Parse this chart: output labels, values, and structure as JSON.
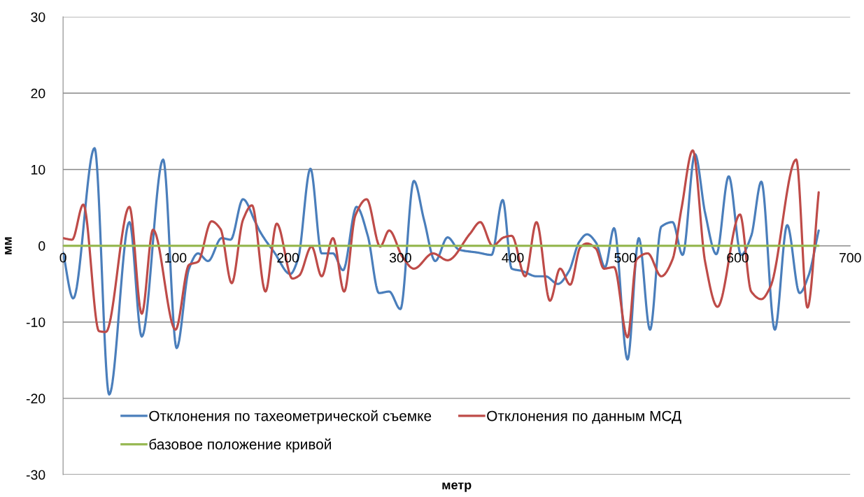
{
  "chart_data": {
    "type": "line",
    "xlabel": "метр",
    "ylabel": "мм",
    "xlim": [
      0,
      700
    ],
    "xticks": [
      0,
      100,
      200,
      300,
      400,
      500,
      600,
      700
    ],
    "ylim": [
      -30,
      30
    ],
    "yticks": [
      -30,
      -20,
      -10,
      0,
      10,
      20,
      30
    ],
    "grid": "y",
    "legend": "bottom",
    "series": [
      {
        "name": "Отклонения по тахеометрической съемке",
        "color": "#4a7ebb",
        "x": [
          0,
          9,
          28,
          41,
          59,
          70,
          89,
          101,
          112,
          120,
          129,
          141,
          149,
          160,
          171,
          175,
          188,
          202,
          209,
          220,
          230,
          240,
          249,
          261,
          271,
          281,
          290,
          300,
          312,
          321,
          331,
          342,
          352,
          369,
          381,
          391,
          399,
          408,
          421,
          429,
          440,
          450,
          459,
          466,
          474,
          482,
          490,
          502,
          512,
          522,
          532,
          542,
          551,
          562,
          571,
          581,
          592,
          603,
          612,
          621,
          633,
          644,
          655,
          663,
          672
        ],
        "values": [
          -0.9,
          -6.9,
          12.8,
          -19.5,
          3.1,
          -11.9,
          11.3,
          -13.4,
          -3.0,
          -1.0,
          -2.0,
          1.0,
          0.8,
          6.1,
          3.1,
          1.9,
          -0.9,
          -3.7,
          -1.7,
          10.1,
          -1.0,
          -1.0,
          -3.2,
          5.1,
          1.3,
          -6.2,
          -6.0,
          -8.3,
          8.5,
          3.4,
          -2.0,
          1.1,
          -0.5,
          -0.9,
          -1.2,
          6.0,
          -3.0,
          -3.3,
          -4.0,
          -4.0,
          -5.0,
          -3.3,
          0.5,
          1.5,
          0.4,
          -2.8,
          2.3,
          -14.9,
          1.0,
          -11.0,
          2.5,
          3.1,
          -1.2,
          12.0,
          4.3,
          -1.1,
          9.1,
          -1.2,
          1.3,
          8.4,
          -11.0,
          2.7,
          -6.2,
          -3.9,
          2.0
        ]
      },
      {
        "name": "Отклонения по данным МСД",
        "color": "#be4b48",
        "x": [
          0,
          8,
          18,
          32,
          38,
          59,
          70,
          80,
          100,
          112,
          120,
          132,
          140,
          150,
          160,
          168,
          180,
          190,
          204,
          210,
          221,
          230,
          240,
          250,
          260,
          270,
          282,
          290,
          302,
          312,
          329,
          342,
          362,
          371,
          382,
          392,
          399,
          411,
          421,
          433,
          442,
          451,
          460,
          466,
          474,
          481,
          490,
          502,
          510,
          520,
          532,
          542,
          550,
          560,
          571,
          582,
          602,
          612,
          621,
          629,
          652,
          662,
          672
        ],
        "values": [
          1.0,
          0.8,
          5.4,
          -11.2,
          -11.3,
          5.1,
          -8.9,
          2.1,
          -11.0,
          -2.5,
          -2.1,
          3.2,
          2.2,
          -4.9,
          3.4,
          5.3,
          -6.0,
          2.9,
          -4.3,
          -3.9,
          -0.1,
          -4.0,
          1.0,
          -6.0,
          4.0,
          6.1,
          -0.1,
          2.0,
          -1.5,
          -3.0,
          -1.0,
          -1.9,
          1.6,
          3.1,
          0.0,
          1.1,
          1.3,
          -4.0,
          3.1,
          -7.2,
          -3.0,
          -5.1,
          -0.2,
          0.3,
          -0.4,
          -3.0,
          -2.8,
          -12.0,
          -1.8,
          -1.0,
          -4.0,
          -1.8,
          4.9,
          12.5,
          -2.1,
          -8.0,
          4.1,
          -6.0,
          -7.0,
          -5.4,
          11.3,
          -8.1,
          7.0
        ]
      },
      {
        "name": "базовое положение кривой",
        "color": "#98b954",
        "x": [
          0,
          672
        ],
        "values": [
          0,
          0
        ]
      }
    ]
  }
}
